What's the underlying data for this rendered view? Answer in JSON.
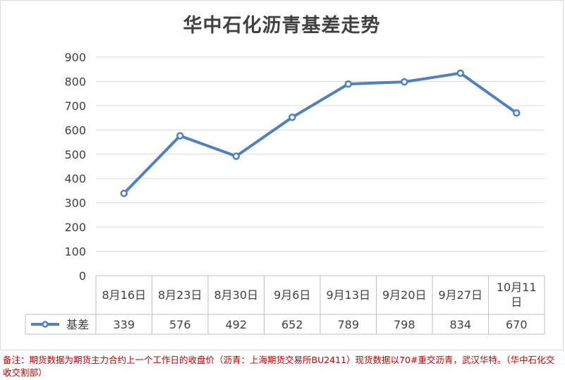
{
  "chart_data": {
    "type": "line",
    "title": "华中石化沥青基差走势",
    "categories": [
      "8月16日",
      "8月23日",
      "8月30日",
      "9月6日",
      "9月13日",
      "9月20日",
      "9月27日",
      "10月11日"
    ],
    "series": [
      {
        "name": "基差",
        "values": [
          339,
          576,
          492,
          652,
          789,
          798,
          834,
          670
        ]
      }
    ],
    "yticks": [
      "0",
      "100",
      "200",
      "300",
      "400",
      "500",
      "600",
      "700",
      "800",
      "900"
    ],
    "ylim": [
      0,
      900
    ],
    "grid": true,
    "legend": "data-table",
    "line_color": "#4f81bd"
  },
  "footnote": "备注：期货数据为期货主力合约上一个工作日的收盘价（沥青：上海期货交易所BU2411）现货数据以70#重交沥青，武汉华特。（华中石化交收交割部）"
}
